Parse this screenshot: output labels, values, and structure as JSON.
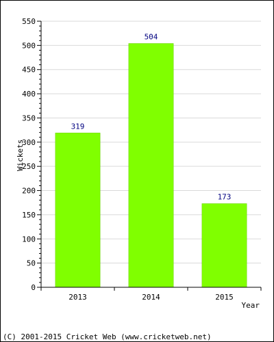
{
  "chart_data": {
    "type": "bar",
    "title": "",
    "xlabel": "Year",
    "ylabel": "Wickets",
    "categories": [
      "2013",
      "2014",
      "2015"
    ],
    "values": [
      319,
      504,
      173
    ],
    "data_labels": [
      "319",
      "504",
      "173"
    ],
    "ylim": [
      0,
      550
    ],
    "y_ticks": [
      "0",
      "50",
      "100",
      "150",
      "200",
      "250",
      "300",
      "350",
      "400",
      "450",
      "500",
      "550"
    ],
    "grid": true,
    "legend": "none"
  },
  "colors": {
    "bar": "#80ff00",
    "bar_edge": "#66cc00",
    "grid": "#d9d9d9",
    "axis": "#000000",
    "data_label": "#000080",
    "text": "#000000"
  },
  "footer": {
    "copyright": "(C) 2001-2015 Cricket Web (www.cricketweb.net)"
  }
}
